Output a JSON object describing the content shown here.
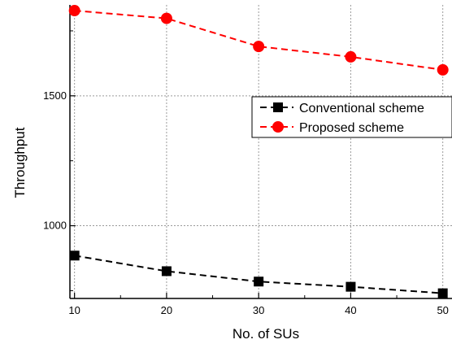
{
  "chart_data": {
    "type": "line",
    "title": "",
    "xlabel": "No. of SUs",
    "ylabel": "Throughput",
    "x": [
      10,
      20,
      30,
      40,
      50
    ],
    "xlim": [
      9.5,
      51
    ],
    "ylim": [
      720,
      1850
    ],
    "xticks": [
      10,
      20,
      30,
      40,
      50
    ],
    "yticks": [
      1000,
      1500
    ],
    "grid": true,
    "legend_position": "right",
    "series": [
      {
        "name": "Conventional scheme",
        "color": "#000000",
        "marker": "square",
        "line_style": "dashed",
        "values": [
          885,
          825,
          785,
          765,
          740
        ]
      },
      {
        "name": "Proposed scheme",
        "color": "#ff0000",
        "marker": "circle",
        "line_style": "dashed",
        "values": [
          1828,
          1798,
          1690,
          1650,
          1600
        ]
      }
    ]
  }
}
